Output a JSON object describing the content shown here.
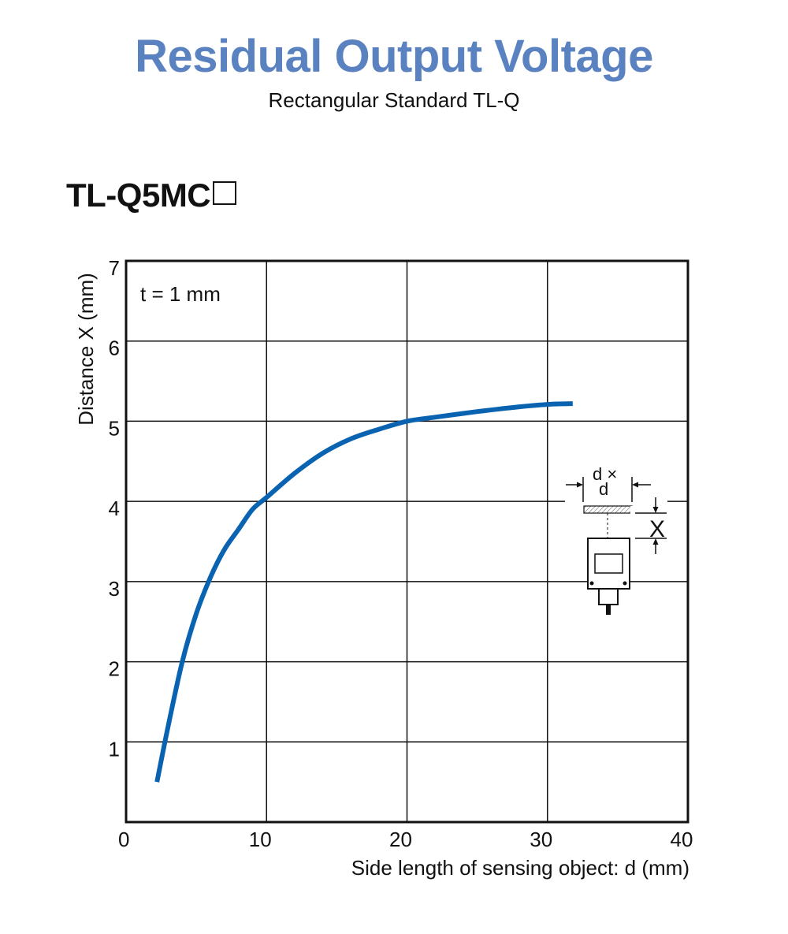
{
  "header": {
    "title": "Residual Output Voltage",
    "subtitle": "Rectangular Standard TL-Q",
    "model": "TL-Q5MC"
  },
  "colors": {
    "title": "#5A82C0",
    "curve": "#0A63B1",
    "grid": "#111111"
  },
  "chart_data": {
    "type": "line",
    "xlabel": "Side length of sensing object: d (mm)",
    "ylabel": "Distance X (mm)",
    "xlim": [
      0,
      40
    ],
    "ylim": [
      0,
      7
    ],
    "x_ticks": [
      "0",
      "10",
      "20",
      "30",
      "40"
    ],
    "y_ticks": [
      "1",
      "2",
      "3",
      "4",
      "5",
      "6",
      "7"
    ],
    "grid": true,
    "annotation": "t = 1 mm",
    "series": [
      {
        "x": [
          2.2,
          3.0,
          4.0,
          5.0,
          6.0,
          7.0,
          8.0,
          9.0,
          10.0,
          12.0,
          14.0,
          16.0,
          18.0,
          20.0,
          22.0,
          25.0,
          28.0,
          30.0,
          31.8
        ],
        "values": [
          0.5,
          1.2,
          2.0,
          2.6,
          3.05,
          3.4,
          3.65,
          3.9,
          4.05,
          4.35,
          4.6,
          4.78,
          4.9,
          5.0,
          5.05,
          5.12,
          5.18,
          5.21,
          5.22
        ]
      }
    ],
    "inset": {
      "label_top": "d ×",
      "label_bottom": "d",
      "distance_label": "X"
    }
  }
}
